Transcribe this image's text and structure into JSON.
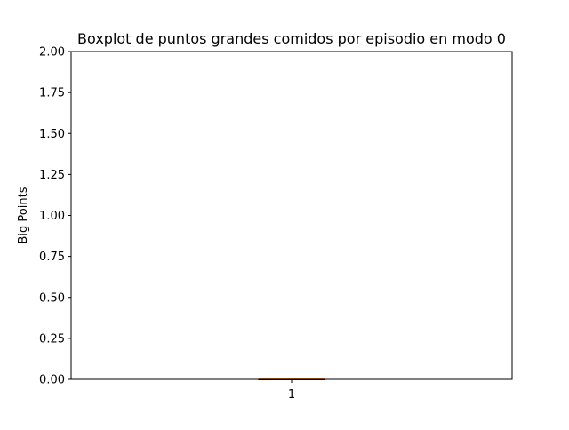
{
  "chart_data": {
    "type": "boxplot",
    "title": "Boxplot de puntos grandes comidos por episodio en modo 0",
    "xlabel": "",
    "ylabel": "Big Points",
    "ylim": [
      0,
      2
    ],
    "yticks": [
      0.0,
      0.25,
      0.5,
      0.75,
      1.0,
      1.25,
      1.5,
      1.75,
      2.0
    ],
    "ytick_labels": [
      "0.00",
      "0.25",
      "0.50",
      "0.75",
      "1.00",
      "1.25",
      "1.50",
      "1.75",
      "2.00"
    ],
    "categories": [
      "1"
    ],
    "boxes": [
      {
        "label": "1",
        "min": 0,
        "q1": 0,
        "median": 0,
        "q3": 0,
        "max": 0
      }
    ],
    "grid": false,
    "colors": {
      "box": "#000000",
      "median": "#ff7f0e",
      "axes": "#000000"
    }
  }
}
